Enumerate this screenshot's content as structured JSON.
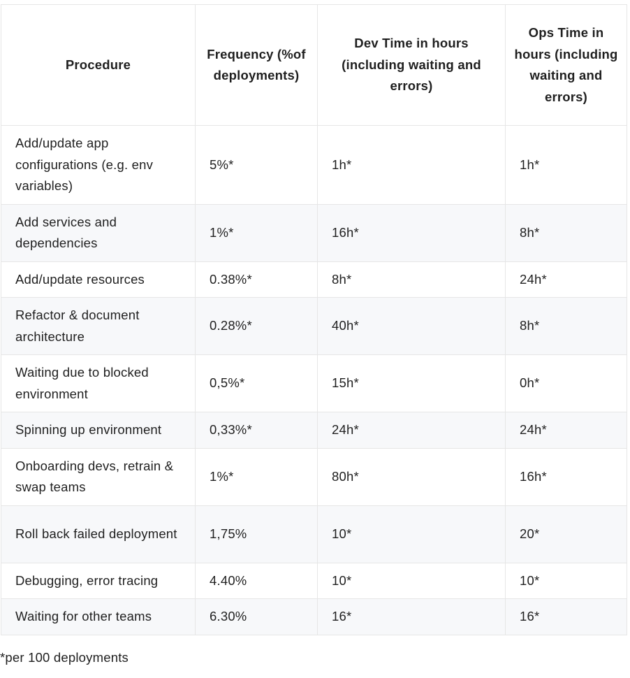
{
  "table": {
    "headers": [
      "Procedure",
      "Frequency (%of deployments)",
      "Dev Time in hours (including waiting and errors)",
      "Ops Time in hours (including waiting and errors)"
    ],
    "rows": [
      [
        "Add/update app configurations (e.g. env variables)",
        "5%*",
        "1h*",
        "1h*"
      ],
      [
        "Add services and dependencies",
        "1%*",
        "16h*",
        "8h*"
      ],
      [
        "Add/update resources",
        "0.38%*",
        "8h*",
        "24h*"
      ],
      [
        "Refactor & document architecture",
        "0.28%*",
        "40h*",
        "8h*"
      ],
      [
        "Waiting due to blocked environment",
        "0,5%*",
        "15h*",
        "0h*"
      ],
      [
        "Spinning up environment",
        "0,33%*",
        "24h*",
        "24h*"
      ],
      [
        "Onboarding devs, retrain & swap teams",
        "1%*",
        "80h*",
        "16h*"
      ],
      [
        "Roll back failed deployment",
        "1,75%",
        "10*",
        "20*"
      ],
      [
        "Debugging, error tracing",
        "4.40%",
        "10*",
        "10*"
      ],
      [
        "Waiting for other teams",
        "6.30%",
        "16*",
        "16*"
      ]
    ]
  },
  "footnote": "*per 100 deployments"
}
